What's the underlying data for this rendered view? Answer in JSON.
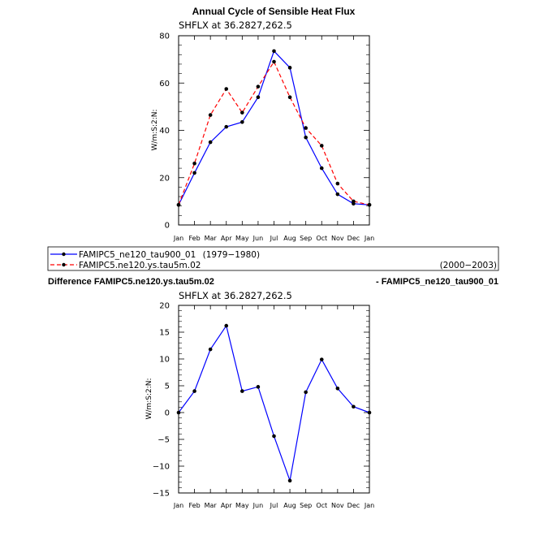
{
  "chart_data": [
    {
      "type": "line",
      "title": "Annual Cycle of Sensible Heat Flux",
      "subtitle": "SHFLX at 36.2827,262.5",
      "ylabel": "W/m:S:2:N:",
      "ylim": [
        0,
        80
      ],
      "yticks": [
        0,
        20,
        40,
        60,
        80
      ],
      "categories": [
        "Jan",
        "Feb",
        "Mar",
        "Apr",
        "May",
        "Jun",
        "Jul",
        "Aug",
        "Sep",
        "Oct",
        "Nov",
        "Dec",
        "Jan"
      ],
      "series": [
        {
          "name": "FAMIPC5_ne120_tau900_01",
          "period": "(1979−1980)",
          "color": "#0000ff",
          "dash": "solid",
          "values": [
            8.5,
            22,
            35,
            41.5,
            43.5,
            54,
            73.5,
            66.5,
            37,
            24,
            13,
            9,
            8.5
          ]
        },
        {
          "name": "FAMIPC5.ne120.ys.tau5m.02",
          "period": "(2000−2003)",
          "color": "#ff0000",
          "dash": "dashed",
          "values": [
            8.5,
            26,
            46.5,
            57.5,
            47.5,
            58.5,
            69,
            54,
            41,
            33.5,
            17.5,
            10,
            8.5
          ]
        }
      ]
    },
    {
      "type": "line",
      "title_left": "Difference FAMIPC5.ne120.ys.tau5m.02",
      "title_right": "- FAMIPC5_ne120_tau900_01",
      "subtitle": "SHFLX at 36.2827,262.5",
      "ylabel": "W/m:S:2:N:",
      "ylim": [
        -15,
        20
      ],
      "yticks": [
        -15,
        -10,
        -5,
        0,
        5,
        10,
        15,
        20
      ],
      "categories": [
        "Jan",
        "Feb",
        "Mar",
        "Apr",
        "May",
        "Jun",
        "Jul",
        "Aug",
        "Sep",
        "Oct",
        "Nov",
        "Dec",
        "Jan"
      ],
      "series": [
        {
          "name": "difference",
          "color": "#0000ff",
          "dash": "solid",
          "values": [
            0,
            4,
            11.8,
            16.2,
            4,
            4.8,
            -4.4,
            -12.7,
            3.8,
            9.9,
            4.5,
            1.1,
            0
          ]
        }
      ]
    }
  ]
}
